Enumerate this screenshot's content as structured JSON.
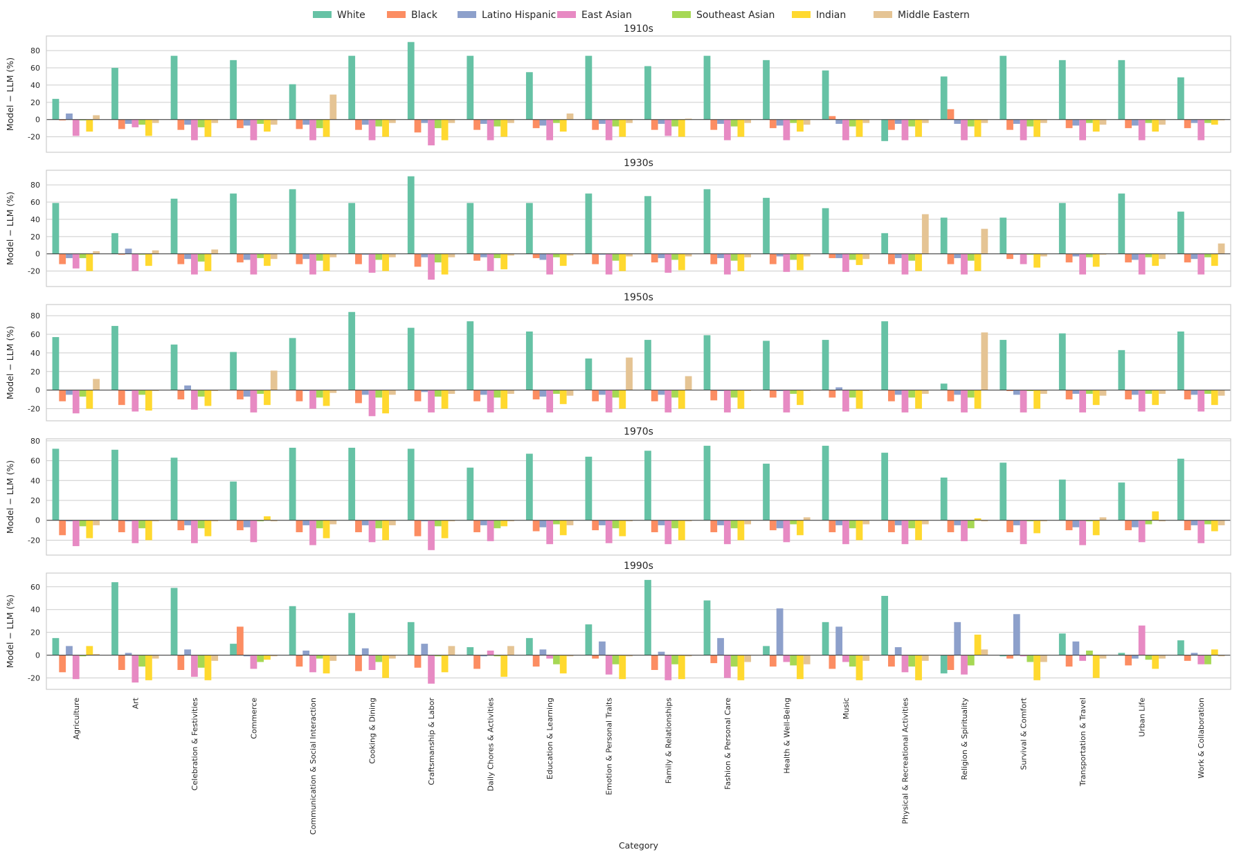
{
  "chart_data": {
    "type": "bar",
    "ylabel": "Model − LLM (%)",
    "xlabel": "Category",
    "grid": true,
    "legend_placement": "top-center",
    "categories": [
      "Agriculture",
      "Art",
      "Celebration & Festivities",
      "Commerce",
      "Communication & Social Interaction",
      "Cooking & Dining",
      "Craftsmanship & Labor",
      "Daily Chores & Activities",
      "Education & Learning",
      "Emotion & Personal Traits",
      "Family & Relationships",
      "Fashion & Personal Care",
      "Health & Well-Being",
      "Music",
      "Physical & Recreational Activities",
      "Religion & Spirituality",
      "Survival & Comfort",
      "Transportation & Travel",
      "Urban Life",
      "Work & Collaboration"
    ],
    "series": [
      {
        "name": "White",
        "color": "#66c2a5"
      },
      {
        "name": "Black",
        "color": "#fc8d62"
      },
      {
        "name": "Latino Hispanic",
        "color": "#8da0cb"
      },
      {
        "name": "East Asian",
        "color": "#e78ac3"
      },
      {
        "name": "Southeast Asian",
        "color": "#a6d854"
      },
      {
        "name": "Indian",
        "color": "#ffd92f"
      },
      {
        "name": "Middle Eastern",
        "color": "#e5c494"
      }
    ],
    "panels": [
      {
        "title": "1910s",
        "ylim": [
          -38,
          97
        ],
        "yticks": [
          -20,
          0,
          20,
          40,
          60,
          80
        ],
        "values": [
          [
            24,
            -1,
            7,
            -19,
            -1,
            -14,
            5
          ],
          [
            60,
            -11,
            -5,
            -9,
            -6,
            -19,
            -4
          ],
          [
            74,
            -12,
            -6,
            -24,
            -9,
            -20,
            -4
          ],
          [
            69,
            -10,
            -7,
            -24,
            -5,
            -14,
            -6
          ],
          [
            41,
            -11,
            -6,
            -24,
            -10,
            -20,
            29
          ],
          [
            74,
            -12,
            -6,
            -24,
            -8,
            -20,
            -4
          ],
          [
            90,
            -15,
            -4,
            -30,
            -10,
            -24,
            -4
          ],
          [
            74,
            -12,
            -5,
            -24,
            -8,
            -20,
            -4
          ],
          [
            55,
            -10,
            -7,
            -24,
            -4,
            -14,
            7
          ],
          [
            74,
            -12,
            -5,
            -24,
            -8,
            -20,
            -4
          ],
          [
            62,
            -12,
            -5,
            -19,
            -8,
            -20,
            1
          ],
          [
            74,
            -12,
            -5,
            -24,
            -8,
            -20,
            -4
          ],
          [
            69,
            -10,
            -7,
            -24,
            -4,
            -14,
            -6
          ],
          [
            57,
            4,
            -5,
            -24,
            -8,
            -20,
            -4
          ],
          [
            -25,
            -12,
            -5,
            -24,
            -8,
            -20,
            -4
          ],
          [
            50,
            12,
            -5,
            -24,
            -8,
            -20,
            -4
          ],
          [
            74,
            -12,
            -5,
            -24,
            -8,
            -20,
            -4
          ],
          [
            69,
            -10,
            -7,
            -24,
            -4,
            -14,
            -6
          ],
          [
            69,
            -10,
            -7,
            -24,
            -4,
            -14,
            -6
          ],
          [
            49,
            -10,
            -4,
            -24,
            -4,
            -6,
            -1
          ]
        ]
      },
      {
        "title": "1930s",
        "ylim": [
          -38,
          97
        ],
        "yticks": [
          -20,
          0,
          20,
          40,
          60,
          80
        ],
        "values": [
          [
            59,
            -12,
            -5,
            -17,
            -5,
            -20,
            3
          ],
          [
            24,
            -1,
            6,
            -20,
            -1,
            -14,
            4
          ],
          [
            64,
            -12,
            -6,
            -24,
            -9,
            -20,
            5
          ],
          [
            70,
            -10,
            -7,
            -24,
            -5,
            -14,
            -6
          ],
          [
            75,
            -12,
            -6,
            -24,
            -8,
            -20,
            -4
          ],
          [
            59,
            -12,
            -1,
            -22,
            -7,
            -20,
            -4
          ],
          [
            90,
            -15,
            -4,
            -30,
            -10,
            -24,
            -4
          ],
          [
            59,
            -8,
            -4,
            -20,
            -5,
            -18,
            -2
          ],
          [
            59,
            -5,
            -7,
            -24,
            -4,
            -14,
            -2
          ],
          [
            70,
            -12,
            -1,
            -24,
            -8,
            -20,
            -3
          ],
          [
            67,
            -10,
            -5,
            -22,
            -7,
            -19,
            -3
          ],
          [
            75,
            -12,
            -5,
            -24,
            -8,
            -20,
            -4
          ],
          [
            65,
            -12,
            -3,
            -21,
            -7,
            -19,
            -3
          ],
          [
            53,
            -5,
            -5,
            -21,
            -7,
            -13,
            -6
          ],
          [
            24,
            -12,
            -5,
            -24,
            -8,
            -20,
            46
          ],
          [
            42,
            -12,
            -5,
            -24,
            -8,
            -20,
            29
          ],
          [
            42,
            -6,
            -1,
            -12,
            -1,
            -16,
            -3
          ],
          [
            59,
            -10,
            -3,
            -24,
            -4,
            -15,
            -1
          ],
          [
            70,
            -10,
            -7,
            -24,
            -4,
            -14,
            -6
          ],
          [
            49,
            -10,
            -6,
            -24,
            -4,
            -14,
            12
          ]
        ]
      },
      {
        "title": "1950s",
        "ylim": [
          -33,
          92
        ],
        "yticks": [
          -20,
          0,
          20,
          40,
          60,
          80
        ],
        "values": [
          [
            57,
            -12,
            -5,
            -25,
            -7,
            -20,
            12
          ],
          [
            69,
            -16,
            -1,
            -23,
            -5,
            -22,
            -1
          ],
          [
            49,
            -10,
            5,
            -21,
            -7,
            -17,
            -1
          ],
          [
            41,
            -10,
            -7,
            -24,
            -4,
            -16,
            21
          ],
          [
            56,
            -12,
            -1,
            -20,
            -8,
            -17,
            -3
          ],
          [
            84,
            -14,
            -5,
            -28,
            -8,
            -25,
            -5
          ],
          [
            67,
            -12,
            -2,
            -24,
            -7,
            -20,
            -4
          ],
          [
            74,
            -12,
            -5,
            -24,
            -8,
            -20,
            -4
          ],
          [
            63,
            -10,
            -7,
            -24,
            -4,
            -15,
            -6
          ],
          [
            34,
            -12,
            -5,
            -24,
            -8,
            -20,
            35
          ],
          [
            54,
            -12,
            -5,
            -24,
            -8,
            -20,
            15
          ],
          [
            59,
            -11,
            -1,
            -24,
            -8,
            -20,
            -1
          ],
          [
            53,
            -8,
            -1,
            -24,
            -4,
            -16,
            -1
          ],
          [
            54,
            -8,
            3,
            -23,
            -8,
            -20,
            -1
          ],
          [
            74,
            -12,
            -5,
            -24,
            -8,
            -20,
            -4
          ],
          [
            7,
            -12,
            -5,
            -24,
            -8,
            -20,
            62
          ],
          [
            54,
            -1,
            -5,
            -24,
            -1,
            -20,
            -4
          ],
          [
            61,
            -10,
            -4,
            -24,
            -4,
            -16,
            -6
          ],
          [
            43,
            -10,
            -5,
            -23,
            -4,
            -16,
            -4
          ],
          [
            63,
            -10,
            -5,
            -23,
            -4,
            -16,
            -6
          ]
        ]
      },
      {
        "title": "1970s",
        "ylim": [
          -35,
          82
        ],
        "yticks": [
          -20,
          0,
          20,
          40,
          60,
          80
        ],
        "values": [
          [
            72,
            -15,
            -1,
            -26,
            -6,
            -18,
            -5
          ],
          [
            71,
            -12,
            -1,
            -23,
            -8,
            -20,
            -1
          ],
          [
            63,
            -10,
            -5,
            -23,
            -8,
            -16,
            -1
          ],
          [
            39,
            -10,
            -7,
            -22,
            -1,
            4,
            -1
          ],
          [
            73,
            -12,
            -5,
            -25,
            -8,
            -18,
            -4
          ],
          [
            73,
            -12,
            -5,
            -22,
            -8,
            -20,
            -5
          ],
          [
            72,
            -16,
            -1,
            -30,
            -6,
            -18,
            -1
          ],
          [
            53,
            -12,
            -5,
            -21,
            -8,
            -6,
            -1
          ],
          [
            67,
            -11,
            -7,
            -24,
            -4,
            -15,
            -5
          ],
          [
            64,
            -10,
            -5,
            -23,
            -8,
            -16,
            -1
          ],
          [
            70,
            -12,
            -5,
            -24,
            -8,
            -20,
            -1
          ],
          [
            75,
            -12,
            -5,
            -24,
            -8,
            -20,
            -4
          ],
          [
            57,
            -10,
            -8,
            -22,
            -4,
            -15,
            3
          ],
          [
            75,
            -12,
            -5,
            -24,
            -8,
            -20,
            -4
          ],
          [
            68,
            -12,
            -5,
            -24,
            -8,
            -20,
            -4
          ],
          [
            43,
            -12,
            -5,
            -21,
            -8,
            2,
            -1
          ],
          [
            58,
            -12,
            -5,
            -24,
            -1,
            -13,
            -1
          ],
          [
            41,
            -10,
            -7,
            -25,
            -1,
            -15,
            3
          ],
          [
            38,
            -10,
            -7,
            -22,
            -4,
            9,
            -1
          ],
          [
            62,
            -10,
            -5,
            -23,
            -4,
            -11,
            -5
          ]
        ]
      },
      {
        "title": "1990s",
        "ylim": [
          -30,
          72
        ],
        "yticks": [
          -20,
          0,
          20,
          40,
          60
        ],
        "values": [
          [
            15,
            -15,
            8,
            -21,
            -1,
            8,
            1
          ],
          [
            64,
            -13,
            2,
            -24,
            -10,
            -22,
            -3
          ],
          [
            59,
            -13,
            5,
            -19,
            -11,
            -22,
            -5
          ],
          [
            10,
            25,
            -1,
            -12,
            -6,
            -4,
            -1
          ],
          [
            43,
            -10,
            4,
            -15,
            -3,
            -16,
            -5
          ],
          [
            37,
            -14,
            6,
            -13,
            -6,
            -20,
            -3
          ],
          [
            29,
            -11,
            10,
            -25,
            -1,
            -15,
            8
          ],
          [
            7,
            -12,
            -1,
            4,
            -1,
            -19,
            8
          ],
          [
            15,
            -10,
            5,
            -3,
            -8,
            -16,
            -1
          ],
          [
            27,
            -3,
            12,
            -17,
            -8,
            -21,
            -1
          ],
          [
            66,
            -13,
            3,
            -22,
            -8,
            -21,
            -1
          ],
          [
            48,
            -7,
            15,
            -20,
            -10,
            -22,
            -6
          ],
          [
            8,
            -10,
            41,
            -6,
            -9,
            -21,
            -8
          ],
          [
            29,
            -12,
            25,
            -6,
            -10,
            -22,
            -5
          ],
          [
            52,
            -10,
            7,
            -15,
            -10,
            -22,
            -5
          ],
          [
            -16,
            -13,
            29,
            -17,
            -9,
            18,
            5
          ],
          [
            -1,
            -3,
            36,
            -1,
            -6,
            -22,
            -6
          ],
          [
            19,
            -10,
            12,
            -5,
            4,
            -20,
            -3
          ],
          [
            2,
            -9,
            -3,
            26,
            -4,
            -12,
            -3
          ],
          [
            13,
            -5,
            2,
            -8,
            -8,
            5,
            -1
          ]
        ]
      }
    ]
  }
}
